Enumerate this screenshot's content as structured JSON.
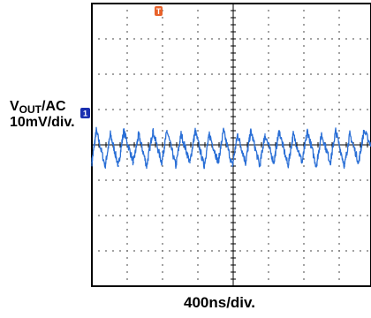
{
  "channel": {
    "label_prefix": "V",
    "label_sub": "OUT",
    "label_suffix": "/AC",
    "scale": "10mV/div.",
    "marker": "1"
  },
  "trigger_marker": "T",
  "timebase": "400ns/div.",
  "colors": {
    "trace": "#2a6fd6",
    "grid": "#000000",
    "frame": "#000000",
    "channel_marker": "#1a2fb0",
    "trigger_marker": "#e8622a"
  },
  "chart_data": {
    "type": "line",
    "title": "",
    "xlabel": "400ns/div.",
    "ylabel": "VOUT/AC 10mV/div.",
    "divisions": {
      "x": 8,
      "y": 8
    },
    "units": {
      "x": "ns",
      "y": "mV"
    },
    "xlim": [
      0,
      3200
    ],
    "ylim": [
      -40,
      40
    ],
    "grid": true,
    "series": [
      {
        "name": "VOUT/AC",
        "x": [
          0,
          50,
          150,
          210,
          300,
          360,
          470,
          530,
          620,
          690,
          790,
          850,
          950,
          1010,
          1110,
          1170,
          1270,
          1330,
          1430,
          1490,
          1590,
          1650,
          1740,
          1800,
          1900,
          1960,
          2060,
          2120,
          2220,
          2280,
          2380,
          2440,
          2540,
          2600,
          2700,
          2760,
          2860,
          2920,
          3020,
          3080,
          3200
        ],
        "y": [
          -5,
          4,
          -6,
          3,
          -6,
          4,
          -5,
          3,
          -6,
          4,
          -5,
          4,
          -6,
          3,
          -5,
          4,
          -6,
          3,
          -5,
          4,
          -6,
          3,
          -5,
          4,
          -6,
          3,
          -5,
          4,
          -6,
          3,
          -5,
          4,
          -6,
          3,
          -5,
          4,
          -6,
          3,
          -5,
          4,
          -2
        ]
      }
    ]
  }
}
